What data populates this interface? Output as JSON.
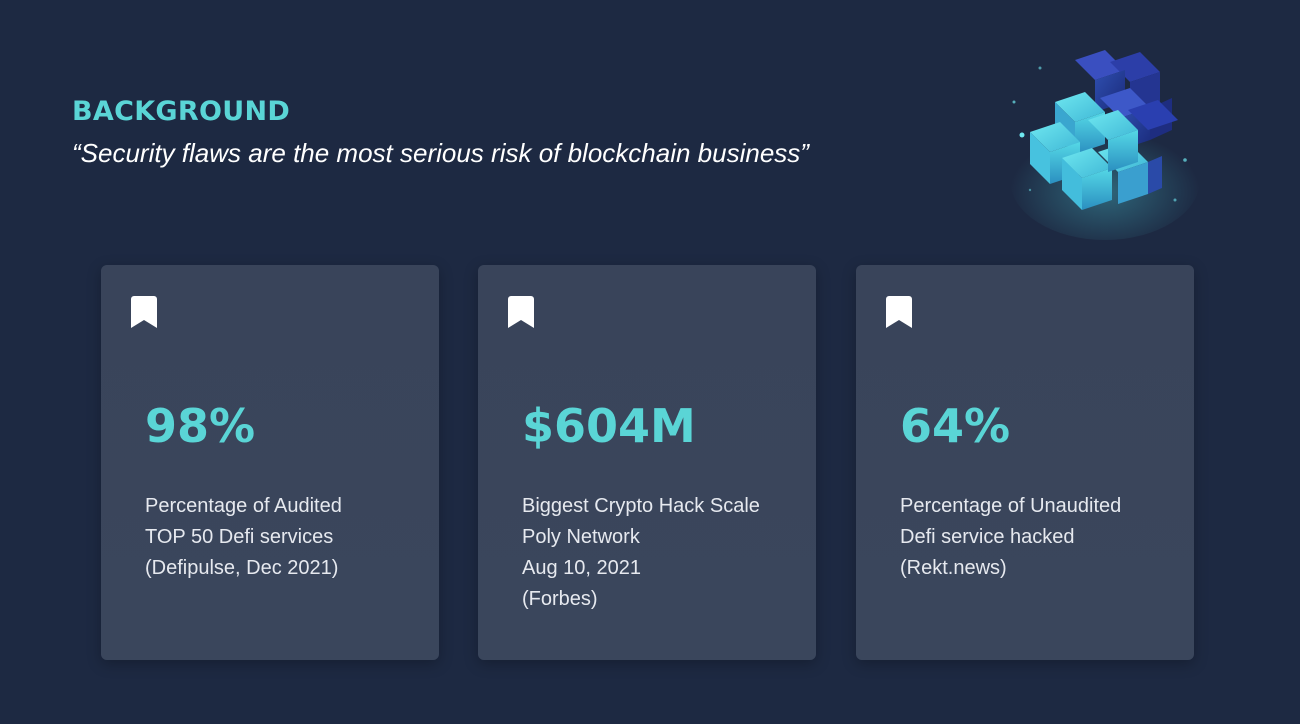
{
  "header": {
    "title": "BACKGROUND",
    "quote": "“Security flaws are the most serious risk of blockchain business”"
  },
  "colors": {
    "background": "#1d2942",
    "accent": "#5ad5d6",
    "card": "#39445a",
    "text": "#e6e9ef"
  },
  "decoration": {
    "icon": "blockchain-cubes-icon"
  },
  "cards": [
    {
      "icon": "bookmark-icon",
      "value": "98%",
      "lines": [
        "Percentage of Audited",
        "TOP 50 Defi services",
        "(Defipulse, Dec 2021)"
      ]
    },
    {
      "icon": "bookmark-icon",
      "value": "$604M",
      "lines": [
        "Biggest Crypto Hack Scale",
        "Poly Network",
        "Aug 10, 2021",
        "(Forbes)"
      ]
    },
    {
      "icon": "bookmark-icon",
      "value": "64%",
      "lines": [
        "Percentage of Unaudited",
        "Defi service hacked",
        "(Rekt.news)"
      ]
    }
  ]
}
